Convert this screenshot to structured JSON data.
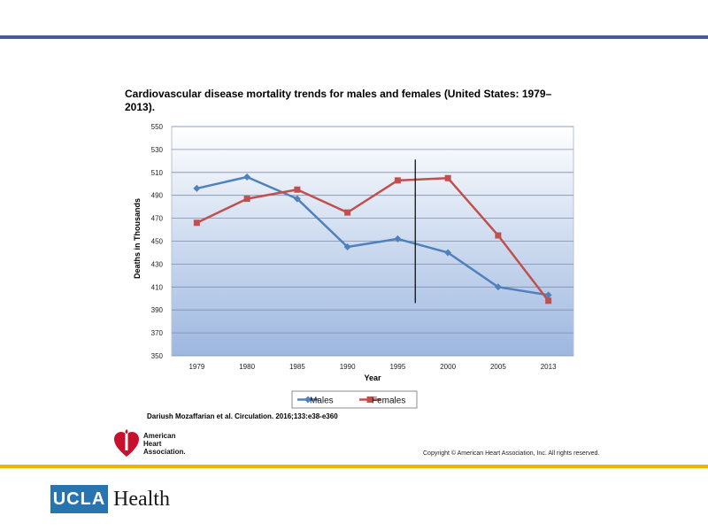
{
  "slide": {
    "citation": "Dariush Mozaffarian et al. Circulation. 2016;133:e38-e360",
    "copyright": "Copyright © American Heart Association, Inc. All rights reserved.",
    "aha_logo_lines": [
      "American",
      "Heart",
      "Association."
    ],
    "ucla_logo": {
      "box": "UCLA",
      "word": "Health"
    },
    "colors": {
      "top_rule": "#4a5a99",
      "gold_rule": "#f2b300",
      "ucla_blue": "#2774ae",
      "aha_red": "#c8102e"
    }
  },
  "chart_data": {
    "type": "line",
    "title": "Cardiovascular disease mortality trends for males and females (United States: 1979–2013).",
    "xlabel": "Year",
    "ylabel": "Deaths in Thousands",
    "categories": [
      "1979",
      "1980",
      "1985",
      "1990",
      "1995",
      "2000",
      "2005",
      "2013"
    ],
    "yticks": [
      350,
      370,
      390,
      410,
      430,
      450,
      470,
      490,
      510,
      530,
      550
    ],
    "ylim": [
      350,
      550
    ],
    "grid": true,
    "legend": "bottom",
    "series": [
      {
        "name": "Males",
        "color": "#4f81bd",
        "marker": "diamond",
        "values": [
          496,
          506,
          487,
          445,
          452,
          440,
          410,
          403
        ]
      },
      {
        "name": "Females",
        "color": "#c0504d",
        "marker": "square",
        "values": [
          466,
          487,
          495,
          475,
          503,
          505,
          455,
          398
        ]
      }
    ],
    "annotation": {
      "type": "vertical-line",
      "between": [
        "1995",
        "2000"
      ],
      "fraction": 0.35,
      "yrange": [
        512,
        413
      ]
    }
  }
}
